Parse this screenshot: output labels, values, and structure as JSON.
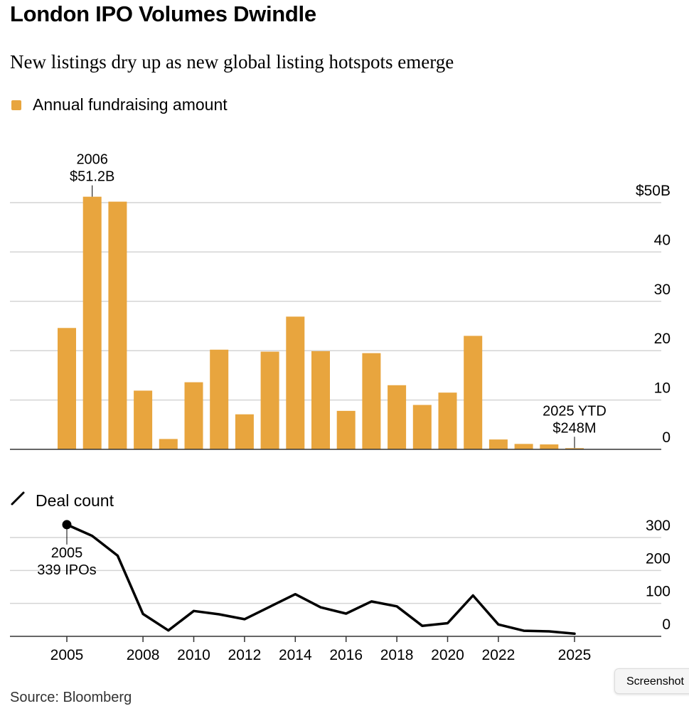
{
  "title": "London IPO Volumes Dwindle",
  "subtitle": "New listings dry up as new global listing hotspots emerge",
  "source": "Source: Bloomberg",
  "tooltip": "Screenshot",
  "colors": {
    "bar": "#e8a53e",
    "line": "#000000",
    "grid": "#d4d4d4"
  },
  "chart_data": [
    {
      "type": "bar",
      "legend": "Annual fundraising amount",
      "x": [
        2005,
        2006,
        2007,
        2008,
        2009,
        2010,
        2011,
        2012,
        2013,
        2014,
        2015,
        2016,
        2017,
        2018,
        2019,
        2020,
        2021,
        2022,
        2023,
        2024,
        2025
      ],
      "values": [
        24.6,
        51.2,
        50.2,
        11.9,
        2.1,
        13.6,
        20.2,
        7.1,
        19.8,
        26.9,
        19.9,
        7.8,
        19.5,
        13.0,
        9.0,
        11.5,
        23.0,
        2.0,
        1.1,
        1.0,
        0.248
      ],
      "y_ticks": [
        {
          "value": 50,
          "label": "$50B"
        },
        {
          "value": 40,
          "label": "40"
        },
        {
          "value": 30,
          "label": "30"
        },
        {
          "value": 20,
          "label": "20"
        },
        {
          "value": 10,
          "label": "10"
        },
        {
          "value": 0,
          "label": "0"
        }
      ],
      "ylim": [
        0,
        50
      ],
      "axis_side": "right",
      "annotations": [
        {
          "x": 2006,
          "value": 51.2,
          "lines": [
            "2006",
            "$51.2B"
          ]
        },
        {
          "x": 2025,
          "value": 0.248,
          "lines": [
            "2025 YTD",
            "$248M"
          ]
        }
      ]
    },
    {
      "type": "line",
      "legend": "Deal count",
      "x": [
        2005,
        2006,
        2007,
        2008,
        2009,
        2010,
        2011,
        2012,
        2013,
        2014,
        2015,
        2016,
        2017,
        2018,
        2019,
        2020,
        2021,
        2022,
        2023,
        2024,
        2025
      ],
      "values": [
        339,
        305,
        245,
        68,
        18,
        77,
        67,
        52,
        90,
        128,
        88,
        69,
        106,
        91,
        32,
        40,
        124,
        36,
        17,
        15,
        8
      ],
      "y_ticks": [
        {
          "value": 300,
          "label": "300"
        },
        {
          "value": 200,
          "label": "200"
        },
        {
          "value": 100,
          "label": "100"
        },
        {
          "value": 0,
          "label": "0"
        }
      ],
      "ylim": [
        0,
        300
      ],
      "axis_side": "right",
      "annotations": [
        {
          "x": 2005,
          "value": 339,
          "lines": [
            "2005",
            "339 IPOs"
          ]
        }
      ]
    }
  ],
  "x_ticks": [
    {
      "value": 2005,
      "label": "2005"
    },
    {
      "value": 2008,
      "label": "2008"
    },
    {
      "value": 2010,
      "label": "2010"
    },
    {
      "value": 2012,
      "label": "2012"
    },
    {
      "value": 2014,
      "label": "2014"
    },
    {
      "value": 2016,
      "label": "2016"
    },
    {
      "value": 2018,
      "label": "2018"
    },
    {
      "value": 2020,
      "label": "2020"
    },
    {
      "value": 2022,
      "label": "2022"
    },
    {
      "value": 2025,
      "label": "2025"
    }
  ]
}
